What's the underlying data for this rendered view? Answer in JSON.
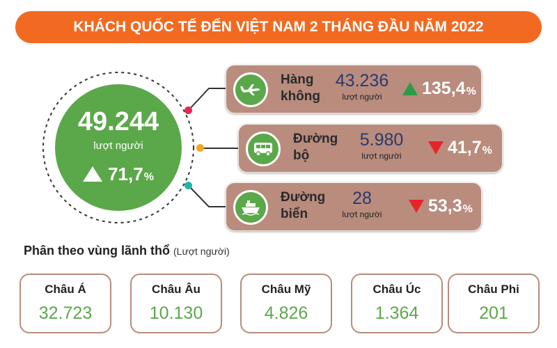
{
  "title": "KHÁCH QUỐC TẾ ĐẾN VIỆT NAM 2 THÁNG ĐẦU NĂM 2022",
  "total": {
    "value": "49.244",
    "unit": "lượt người",
    "change_value": "71,7",
    "change_sign": "%",
    "direction": "up"
  },
  "colors": {
    "banner": "#f26a21",
    "green": "#5ba84a",
    "pill": "#b98c7e",
    "up_arrow": "#2e9a46",
    "down_arrow": "#e8242b",
    "value_text": "#2b3a6b",
    "dot_air": "#e8245a",
    "dot_road": "#f5a623",
    "dot_sea": "#1fb5a8"
  },
  "modes": [
    {
      "icon": "airplane-icon",
      "label_line1": "Hàng",
      "label_line2": "không",
      "value": "43.236",
      "unit": "lượt người",
      "change_value": "135,4",
      "change_sign": "%",
      "direction": "up"
    },
    {
      "icon": "bus-icon",
      "label_line1": "Đường",
      "label_line2": "bộ",
      "value": "5.980",
      "unit": "lượt người",
      "change_value": "41,7",
      "change_sign": "%",
      "direction": "down"
    },
    {
      "icon": "ship-icon",
      "label_line1": "Đường",
      "label_line2": "biển",
      "value": "28",
      "unit": "lượt người",
      "change_value": "53,3",
      "change_sign": "%",
      "direction": "down"
    }
  ],
  "regions_section": {
    "title": "Phân theo vùng lãnh thổ",
    "subtitle": "(Lượt người)"
  },
  "regions": [
    {
      "name": "Châu Á",
      "value": "32.723"
    },
    {
      "name": "Châu Âu",
      "value": "10.130"
    },
    {
      "name": "Châu Mỹ",
      "value": "4.826"
    },
    {
      "name": "Châu Úc",
      "value": "1.364"
    },
    {
      "name": "Châu Phi",
      "value": "201"
    }
  ]
}
